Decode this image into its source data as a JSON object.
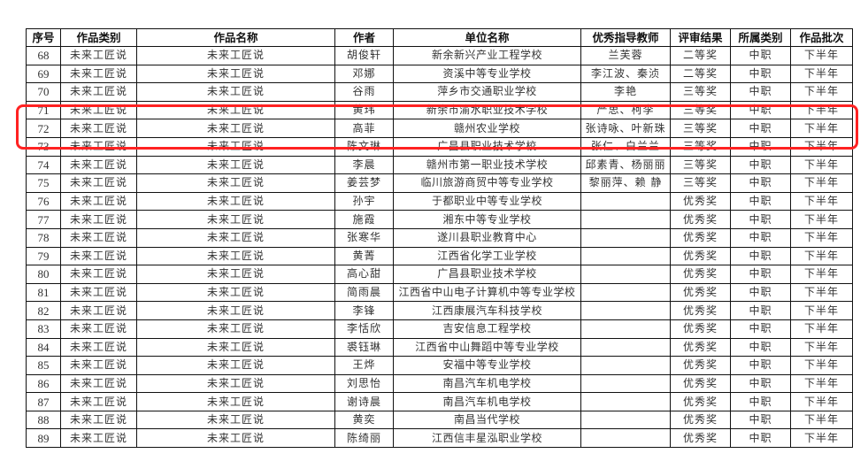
{
  "table": {
    "headers": [
      "序号",
      "作品类别",
      "作品名称",
      "作者",
      "单位名称",
      "优秀指导教师",
      "评审结果",
      "所属类别",
      "作品批次"
    ],
    "rows": [
      [
        "68",
        "未来工匠说",
        "未来工匠说",
        "胡俊轩",
        "新余新兴产业工程学校",
        "兰芙蓉",
        "二等奖",
        "中职",
        "下半年"
      ],
      [
        "69",
        "未来工匠说",
        "未来工匠说",
        "邓娜",
        "资溪中等专业学校",
        "李江波、秦浈",
        "二等奖",
        "中职",
        "下半年"
      ],
      [
        "70",
        "未来工匠说",
        "未来工匠说",
        "谷雨",
        "萍乡市交通职业学校",
        "李艳",
        "三等奖",
        "中职",
        "下半年"
      ],
      [
        "71",
        "未来工匠说",
        "未来工匠说",
        "黄玮",
        "新余市渝水职业技术学校",
        "严思、柯李",
        "三等奖",
        "中职",
        "下半年"
      ],
      [
        "72",
        "未来工匠说",
        "未来工匠说",
        "高菲",
        "赣州农业学校",
        "张诗咏、叶新珠",
        "三等奖",
        "中职",
        "下半年"
      ],
      [
        "73",
        "未来工匠说",
        "未来工匠说",
        "陈文琳",
        "广昌县职业技术学校",
        "张仁、白兰兰",
        "三等奖",
        "中职",
        "下半年"
      ],
      [
        "74",
        "未来工匠说",
        "未来工匠说",
        "李晨",
        "赣州市第一职业技术学校",
        "邱素青、杨丽丽",
        "三等奖",
        "中职",
        "下半年"
      ],
      [
        "75",
        "未来工匠说",
        "未来工匠说",
        "姜芸梦",
        "临川旅游商贸中等专业学校",
        "黎丽萍、赖 静",
        "三等奖",
        "中职",
        "下半年"
      ],
      [
        "76",
        "未来工匠说",
        "未来工匠说",
        "孙宇",
        "于都职业中等专业学校",
        "",
        "优秀奖",
        "中职",
        "下半年"
      ],
      [
        "77",
        "未来工匠说",
        "未来工匠说",
        "施霞",
        "湘东中等专业学校",
        "",
        "优秀奖",
        "中职",
        "下半年"
      ],
      [
        "78",
        "未来工匠说",
        "未来工匠说",
        "张寒华",
        "遂川县职业教育中心",
        "",
        "优秀奖",
        "中职",
        "下半年"
      ],
      [
        "79",
        "未来工匠说",
        "未来工匠说",
        "黄菁",
        "江西省化学工业学校",
        "",
        "优秀奖",
        "中职",
        "下半年"
      ],
      [
        "80",
        "未来工匠说",
        "未来工匠说",
        "高心甜",
        "广昌县职业技术学校",
        "",
        "优秀奖",
        "中职",
        "下半年"
      ],
      [
        "81",
        "未来工匠说",
        "未来工匠说",
        "简雨晨",
        "江西省中山电子计算机中等专业学校",
        "",
        "优秀奖",
        "中职",
        "下半年"
      ],
      [
        "82",
        "未来工匠说",
        "未来工匠说",
        "李锋",
        "江西康展汽车科技学校",
        "",
        "优秀奖",
        "中职",
        "下半年"
      ],
      [
        "83",
        "未来工匠说",
        "未来工匠说",
        "李恬欣",
        "吉安信息工程学校",
        "",
        "优秀奖",
        "中职",
        "下半年"
      ],
      [
        "84",
        "未来工匠说",
        "未来工匠说",
        "裘钰琳",
        "江西省中山舞蹈中等专业学校",
        "",
        "优秀奖",
        "中职",
        "下半年"
      ],
      [
        "85",
        "未来工匠说",
        "未来工匠说",
        "王烨",
        "安福中等专业学校",
        "",
        "优秀奖",
        "中职",
        "下半年"
      ],
      [
        "86",
        "未来工匠说",
        "未来工匠说",
        "刘思怡",
        "南昌汽车机电学校",
        "",
        "优秀奖",
        "中职",
        "下半年"
      ],
      [
        "87",
        "未来工匠说",
        "未来工匠说",
        "谢诗晨",
        "南昌汽车机电学校",
        "",
        "优秀奖",
        "中职",
        "下半年"
      ],
      [
        "88",
        "未来工匠说",
        "未来工匠说",
        "黄奕",
        "南昌当代学校",
        "",
        "优秀奖",
        "中职",
        "下半年"
      ],
      [
        "89",
        "未来工匠说",
        "未来工匠说",
        "陈绮丽",
        "江西信丰星泓职业学校",
        "",
        "优秀奖",
        "中职",
        "下半年"
      ]
    ]
  },
  "highlight": {
    "color": "#ff2222"
  }
}
